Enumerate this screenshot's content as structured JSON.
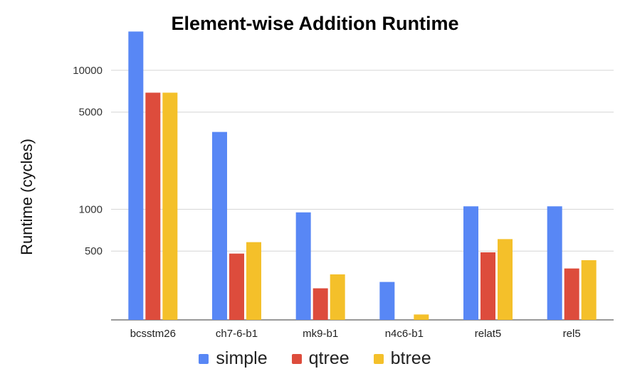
{
  "chart_data": {
    "type": "bar",
    "title": "Element-wise Addition Runtime",
    "xlabel": "",
    "ylabel": "Runtime (cycles)",
    "yscale": "log",
    "ylim": [
      160,
      20000
    ],
    "yticks": [
      500,
      1000,
      5000,
      10000
    ],
    "ytick_labels": [
      "500",
      "1000",
      "5000",
      "10000"
    ],
    "grid": true,
    "legend_position": "bottom",
    "categories": [
      "bcsstm26",
      "ch7-6-b1",
      "mk9-b1",
      "n4c6-b1",
      "relat5",
      "rel5"
    ],
    "series": [
      {
        "name": "simple",
        "color": "#5887f5",
        "values": [
          19000,
          3600,
          950,
          300,
          1050,
          1050
        ]
      },
      {
        "name": "qtree",
        "color": "#dd4c3c",
        "values": [
          6900,
          480,
          270,
          null,
          490,
          375
        ]
      },
      {
        "name": "btree",
        "color": "#f4c02a",
        "values": [
          6900,
          580,
          340,
          175,
          610,
          430
        ]
      }
    ]
  }
}
